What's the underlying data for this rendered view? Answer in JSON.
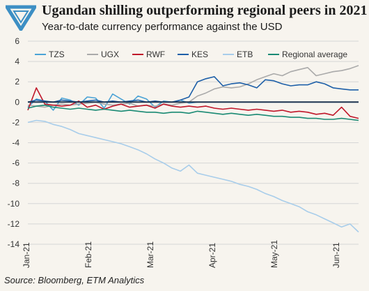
{
  "header": {
    "title": "Ugandan shilling outperforming regional peers in 2021",
    "subtitle": "Year-to-date currency performance against the USD"
  },
  "footer": {
    "source": "Source: Bloomberg, ETM Analytics"
  },
  "colors": {
    "background": "#f7f4ee",
    "logo": "#3d8fc4",
    "grid": "#d6d6d6",
    "zero_line": "#1f3550"
  },
  "chart_data": {
    "type": "line",
    "title": "Ugandan shilling outperforming regional peers in 2021",
    "subtitle": "Year-to-date currency performance against the USD",
    "xlabel": "",
    "ylabel": "",
    "ylim": [
      -14,
      6
    ],
    "yticks": [
      6,
      4,
      2,
      0,
      -2,
      -4,
      -6,
      -8,
      -10,
      -12,
      -14
    ],
    "xticks": [
      "Jan-21",
      "Feb-21",
      "Mar-21",
      "Apr-21",
      "May-21",
      "Jun-21"
    ],
    "grid": "horizontal",
    "legend": "top",
    "x": [
      1,
      2,
      3,
      4,
      5,
      6,
      7,
      8,
      9,
      10,
      11,
      12,
      13,
      14,
      15,
      16,
      17,
      18,
      19,
      20,
      21,
      22,
      23,
      24,
      25,
      26,
      27,
      28,
      29,
      30,
      31,
      32,
      33,
      34,
      35,
      36,
      37,
      38,
      39,
      40
    ],
    "series": [
      {
        "name": "TZS",
        "color": "#4ba3d6",
        "values": [
          -0.5,
          0.3,
          0.1,
          -0.8,
          0.4,
          0.2,
          -0.3,
          0.5,
          0.4,
          -0.6,
          0.8,
          0.3,
          -0.2,
          0.6,
          0.3,
          -0.5,
          0.1,
          0.0,
          0.2,
          -0.1,
          0.0,
          0.0,
          0.0,
          0.0,
          0.0,
          0.0,
          0.0,
          0.0,
          0.0,
          0.0,
          0.0,
          0.0,
          0.0,
          0.0,
          0.0,
          0.0,
          0.0,
          0.0,
          0.0,
          0.0
        ]
      },
      {
        "name": "UGX",
        "color": "#aaaaaa",
        "values": [
          -0.3,
          -0.4,
          -0.5,
          -0.3,
          -0.2,
          -0.3,
          -0.2,
          -0.1,
          0.0,
          -0.2,
          -0.3,
          -0.2,
          -0.1,
          -0.4,
          -0.3,
          -0.4,
          -0.2,
          -0.3,
          -0.1,
          0.0,
          0.6,
          0.9,
          1.3,
          1.5,
          1.4,
          1.5,
          1.8,
          2.2,
          2.5,
          2.8,
          2.6,
          3.0,
          3.2,
          3.4,
          2.6,
          2.8,
          3.0,
          3.1,
          3.3,
          3.6
        ]
      },
      {
        "name": "RWF",
        "color": "#c0172a",
        "values": [
          -0.8,
          1.4,
          -0.2,
          -0.3,
          -0.4,
          -0.3,
          0.1,
          -0.5,
          -0.3,
          -0.7,
          -0.4,
          -0.2,
          -0.5,
          -0.4,
          -0.3,
          -0.6,
          -0.2,
          -0.4,
          -0.5,
          -0.4,
          -0.5,
          -0.4,
          -0.6,
          -0.7,
          -0.6,
          -0.7,
          -0.8,
          -0.7,
          -0.8,
          -0.9,
          -0.8,
          -1.0,
          -0.9,
          -1.0,
          -1.2,
          -1.1,
          -1.3,
          -0.5,
          -1.4,
          -1.6
        ]
      },
      {
        "name": "KES",
        "color": "#1d5fa8",
        "values": [
          0.0,
          0.2,
          0.1,
          0.0,
          0.2,
          0.1,
          0.0,
          0.1,
          0.2,
          0.0,
          0.1,
          0.0,
          0.1,
          0.2,
          0.0,
          0.1,
          0.0,
          0.0,
          0.2,
          0.5,
          2.0,
          2.3,
          2.5,
          1.6,
          1.8,
          1.9,
          1.7,
          1.4,
          2.2,
          2.1,
          1.8,
          1.6,
          1.7,
          1.7,
          2.0,
          1.8,
          1.4,
          1.3,
          1.2,
          1.2
        ]
      },
      {
        "name": "ETB",
        "color": "#a8cdea",
        "values": [
          -2.0,
          -1.8,
          -1.9,
          -2.2,
          -2.4,
          -2.7,
          -3.1,
          -3.3,
          -3.5,
          -3.7,
          -3.9,
          -4.1,
          -4.4,
          -4.7,
          -5.1,
          -5.6,
          -6.0,
          -6.5,
          -6.8,
          -6.2,
          -7.0,
          -7.2,
          -7.4,
          -7.6,
          -7.8,
          -8.1,
          -8.3,
          -8.6,
          -9.0,
          -9.3,
          -9.7,
          -10.0,
          -10.3,
          -10.8,
          -11.1,
          -11.5,
          -11.9,
          -12.3,
          -12.0,
          -12.8
        ]
      },
      {
        "name": "Regional average",
        "color": "#1a8a74",
        "values": [
          -0.6,
          -0.4,
          -0.3,
          -0.5,
          -0.6,
          -0.7,
          -0.6,
          -0.7,
          -0.8,
          -0.7,
          -0.8,
          -0.9,
          -0.8,
          -0.9,
          -1.0,
          -1.0,
          -1.1,
          -1.0,
          -1.0,
          -1.1,
          -0.9,
          -1.0,
          -1.1,
          -1.2,
          -1.1,
          -1.2,
          -1.3,
          -1.2,
          -1.3,
          -1.4,
          -1.4,
          -1.5,
          -1.5,
          -1.6,
          -1.6,
          -1.7,
          -1.7,
          -1.6,
          -1.7,
          -1.8
        ]
      }
    ]
  }
}
